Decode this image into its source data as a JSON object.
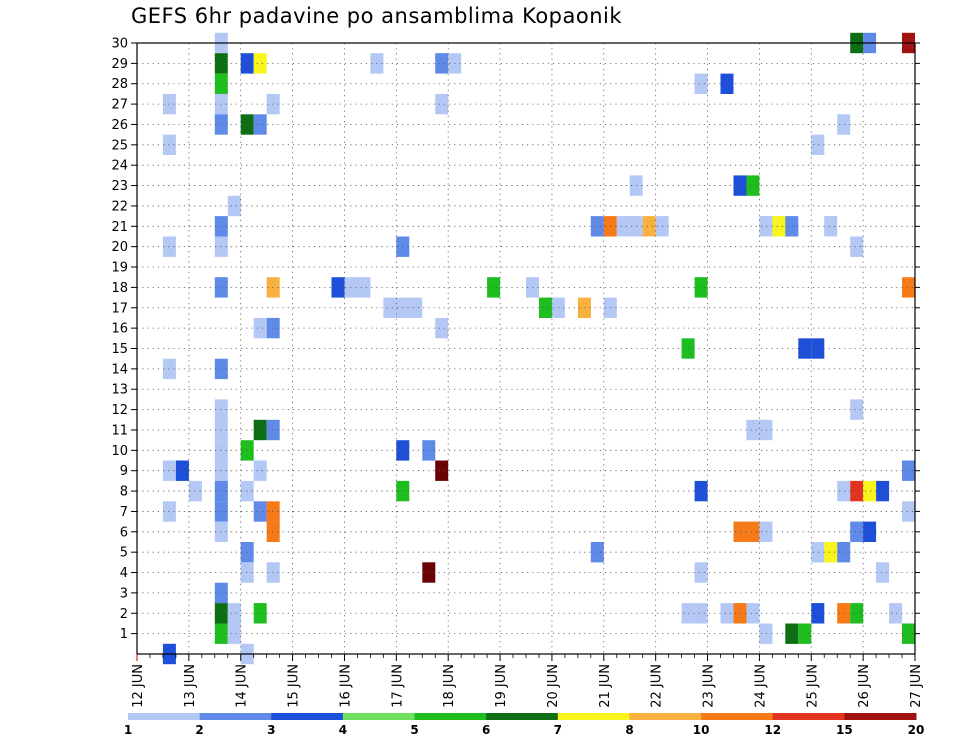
{
  "chart_data": {
    "type": "heatmap",
    "title": "GEFS 6hr padavine po ansamblima Kopaonik",
    "xlabel": "",
    "ylabel": "",
    "x_ticks": [
      "12 JUN",
      "13 JUN",
      "14 JUN",
      "15 JUN",
      "16 JUN",
      "17 JUN",
      "18 JUN",
      "19 JUN",
      "20 JUN",
      "21 JUN",
      "22 JUN",
      "23 JUN",
      "24 JUN",
      "25 JUN",
      "26 JUN",
      "27 JUN"
    ],
    "y_ticks": [
      "1",
      "2",
      "3",
      "4",
      "5",
      "6",
      "7",
      "8",
      "9",
      "10",
      "11",
      "12",
      "13",
      "14",
      "15",
      "16",
      "17",
      "18",
      "19",
      "20",
      "21",
      "22",
      "23",
      "24",
      "25",
      "26",
      "27",
      "28",
      "29",
      "30"
    ],
    "x_unit": "days since 12 JUN 00Z (6-hourly steps)",
    "xlim": [
      0,
      15
    ],
    "ylim": [
      0,
      30
    ],
    "grid": true,
    "colorbar": {
      "labels": [
        "1",
        "2",
        "3",
        "4",
        "5",
        "6",
        "7",
        "8",
        "10",
        "12",
        "15",
        "20"
      ],
      "colors": [
        "#b4c8f5",
        "#5f8ae8",
        "#1e4fd8",
        "#6fe060",
        "#1fbe1f",
        "#0e6e14",
        "#f8f41c",
        "#f8b040",
        "#f77a18",
        "#e23220",
        "#a01210",
        "#6a0404"
      ]
    },
    "cells": [
      {
        "x": 0.5,
        "y": 9,
        "v": 1
      },
      {
        "x": 0.5,
        "y": 0,
        "v": 3
      },
      {
        "x": 0.5,
        "y": 7,
        "v": 1
      },
      {
        "x": 0.5,
        "y": 14,
        "v": 1
      },
      {
        "x": 0.5,
        "y": 20,
        "v": 1
      },
      {
        "x": 0.5,
        "y": 25,
        "v": 1
      },
      {
        "x": 0.5,
        "y": 27,
        "v": 1
      },
      {
        "x": 0.75,
        "y": 9,
        "v": 3
      },
      {
        "x": 1,
        "y": 8,
        "v": 1
      },
      {
        "x": 1.5,
        "y": 30,
        "v": 1
      },
      {
        "x": 1.5,
        "y": 29,
        "v": 6
      },
      {
        "x": 1.5,
        "y": 28,
        "v": 5
      },
      {
        "x": 1.5,
        "y": 27,
        "v": 1
      },
      {
        "x": 1.5,
        "y": 26,
        "v": 2
      },
      {
        "x": 1.5,
        "y": 21,
        "v": 2
      },
      {
        "x": 1.5,
        "y": 20,
        "v": 1
      },
      {
        "x": 1.5,
        "y": 18,
        "v": 2
      },
      {
        "x": 1.5,
        "y": 14,
        "v": 2
      },
      {
        "x": 1.5,
        "y": 12,
        "v": 1
      },
      {
        "x": 1.5,
        "y": 11,
        "v": 1
      },
      {
        "x": 1.5,
        "y": 10,
        "v": 1
      },
      {
        "x": 1.5,
        "y": 9,
        "v": 1
      },
      {
        "x": 1.5,
        "y": 8,
        "v": 2
      },
      {
        "x": 1.5,
        "y": 7,
        "v": 2
      },
      {
        "x": 1.5,
        "y": 6,
        "v": 1
      },
      {
        "x": 1.5,
        "y": 3,
        "v": 2
      },
      {
        "x": 1.5,
        "y": 2,
        "v": 6
      },
      {
        "x": 1.5,
        "y": 1,
        "v": 5
      },
      {
        "x": 1.75,
        "y": 22,
        "v": 1
      },
      {
        "x": 1.75,
        "y": 2,
        "v": 1
      },
      {
        "x": 1.75,
        "y": 1,
        "v": 1
      },
      {
        "x": 2,
        "y": 29,
        "v": 3
      },
      {
        "x": 2,
        "y": 26,
        "v": 6
      },
      {
        "x": 2,
        "y": 10,
        "v": 5
      },
      {
        "x": 2,
        "y": 8,
        "v": 1
      },
      {
        "x": 2,
        "y": 5,
        "v": 2
      },
      {
        "x": 2,
        "y": 4,
        "v": 1
      },
      {
        "x": 2,
        "y": 0,
        "v": 1
      },
      {
        "x": 2.25,
        "y": 29,
        "v": 7
      },
      {
        "x": 2.25,
        "y": 26,
        "v": 2
      },
      {
        "x": 2.25,
        "y": 11,
        "v": 6
      },
      {
        "x": 2.25,
        "y": 9,
        "v": 1
      },
      {
        "x": 2.25,
        "y": 7,
        "v": 2
      },
      {
        "x": 2.25,
        "y": 2,
        "v": 5
      },
      {
        "x": 2.25,
        "y": 16,
        "v": 1
      },
      {
        "x": 2.5,
        "y": 27,
        "v": 1
      },
      {
        "x": 2.5,
        "y": 18,
        "v": 8
      },
      {
        "x": 2.5,
        "y": 16,
        "v": 2
      },
      {
        "x": 2.5,
        "y": 11,
        "v": 2
      },
      {
        "x": 2.5,
        "y": 7,
        "v": 10
      },
      {
        "x": 2.5,
        "y": 6,
        "v": 10
      },
      {
        "x": 2.5,
        "y": 4,
        "v": 1
      },
      {
        "x": 3.75,
        "y": 18,
        "v": 3
      },
      {
        "x": 4,
        "y": 18,
        "v": 1
      },
      {
        "x": 4.25,
        "y": 18,
        "v": 1
      },
      {
        "x": 4.5,
        "y": 29,
        "v": 1
      },
      {
        "x": 4.75,
        "y": 17,
        "v": 1
      },
      {
        "x": 5,
        "y": 17,
        "v": 1
      },
      {
        "x": 5.25,
        "y": 17,
        "v": 1
      },
      {
        "x": 5,
        "y": 20,
        "v": 2
      },
      {
        "x": 5,
        "y": 10,
        "v": 3
      },
      {
        "x": 5,
        "y": 8,
        "v": 5
      },
      {
        "x": 5.5,
        "y": 10,
        "v": 2
      },
      {
        "x": 5.5,
        "y": 4,
        "v": 20
      },
      {
        "x": 5.75,
        "y": 29,
        "v": 2
      },
      {
        "x": 5.75,
        "y": 27,
        "v": 1
      },
      {
        "x": 5.75,
        "y": 16,
        "v": 1
      },
      {
        "x": 5.75,
        "y": 9,
        "v": 20
      },
      {
        "x": 6,
        "y": 29,
        "v": 1
      },
      {
        "x": 6.75,
        "y": 18,
        "v": 5
      },
      {
        "x": 7.5,
        "y": 18,
        "v": 1
      },
      {
        "x": 7.75,
        "y": 17,
        "v": 5
      },
      {
        "x": 8,
        "y": 17,
        "v": 1
      },
      {
        "x": 8.5,
        "y": 17,
        "v": 8
      },
      {
        "x": 8.75,
        "y": 21,
        "v": 2
      },
      {
        "x": 8.75,
        "y": 5,
        "v": 2
      },
      {
        "x": 9,
        "y": 21,
        "v": 10
      },
      {
        "x": 9,
        "y": 17,
        "v": 1
      },
      {
        "x": 9.25,
        "y": 21,
        "v": 1
      },
      {
        "x": 9.5,
        "y": 21,
        "v": 1
      },
      {
        "x": 9.5,
        "y": 23,
        "v": 1
      },
      {
        "x": 9.75,
        "y": 21,
        "v": 8
      },
      {
        "x": 10,
        "y": 21,
        "v": 1
      },
      {
        "x": 10.5,
        "y": 15,
        "v": 5
      },
      {
        "x": 10.5,
        "y": 2,
        "v": 1
      },
      {
        "x": 10.75,
        "y": 2,
        "v": 1
      },
      {
        "x": 10.75,
        "y": 28,
        "v": 1
      },
      {
        "x": 10.75,
        "y": 18,
        "v": 5
      },
      {
        "x": 10.75,
        "y": 8,
        "v": 3
      },
      {
        "x": 10.75,
        "y": 4,
        "v": 1
      },
      {
        "x": 11.25,
        "y": 28,
        "v": 3
      },
      {
        "x": 11.25,
        "y": 2,
        "v": 1
      },
      {
        "x": 11.5,
        "y": 2,
        "v": 10
      },
      {
        "x": 11.5,
        "y": 23,
        "v": 3
      },
      {
        "x": 11.5,
        "y": 6,
        "v": 10
      },
      {
        "x": 11.75,
        "y": 23,
        "v": 5
      },
      {
        "x": 11.75,
        "y": 6,
        "v": 10
      },
      {
        "x": 11.75,
        "y": 11,
        "v": 1
      },
      {
        "x": 12,
        "y": 21,
        "v": 1
      },
      {
        "x": 12,
        "y": 11,
        "v": 1
      },
      {
        "x": 12,
        "y": 6,
        "v": 1
      },
      {
        "x": 12,
        "y": 1,
        "v": 1
      },
      {
        "x": 11.75,
        "y": 2,
        "v": 1
      },
      {
        "x": 12.25,
        "y": 21,
        "v": 7
      },
      {
        "x": 12.5,
        "y": 21,
        "v": 2
      },
      {
        "x": 12.5,
        "y": 1,
        "v": 6
      },
      {
        "x": 12.75,
        "y": 1,
        "v": 5
      },
      {
        "x": 12.75,
        "y": 15,
        "v": 3
      },
      {
        "x": 13,
        "y": 15,
        "v": 3
      },
      {
        "x": 13,
        "y": 25,
        "v": 1
      },
      {
        "x": 13,
        "y": 5,
        "v": 1
      },
      {
        "x": 13,
        "y": 2,
        "v": 3
      },
      {
        "x": 13.25,
        "y": 21,
        "v": 1
      },
      {
        "x": 13.25,
        "y": 5,
        "v": 7
      },
      {
        "x": 13.5,
        "y": 5,
        "v": 2
      },
      {
        "x": 13.5,
        "y": 26,
        "v": 1
      },
      {
        "x": 13.5,
        "y": 8,
        "v": 1
      },
      {
        "x": 13.5,
        "y": 2,
        "v": 10
      },
      {
        "x": 13.75,
        "y": 30,
        "v": 6
      },
      {
        "x": 13.75,
        "y": 20,
        "v": 1
      },
      {
        "x": 13.75,
        "y": 12,
        "v": 1
      },
      {
        "x": 13.75,
        "y": 8,
        "v": 12
      },
      {
        "x": 13.75,
        "y": 6,
        "v": 2
      },
      {
        "x": 13.75,
        "y": 2,
        "v": 5
      },
      {
        "x": 14,
        "y": 30,
        "v": 2
      },
      {
        "x": 14,
        "y": 8,
        "v": 7
      },
      {
        "x": 14,
        "y": 6,
        "v": 3
      },
      {
        "x": 14.25,
        "y": 8,
        "v": 3
      },
      {
        "x": 14.25,
        "y": 4,
        "v": 1
      },
      {
        "x": 14.5,
        "y": 2,
        "v": 1
      },
      {
        "x": 14.75,
        "y": 30,
        "v": 15
      },
      {
        "x": 14.75,
        "y": 18,
        "v": 10
      },
      {
        "x": 14.75,
        "y": 9,
        "v": 2
      },
      {
        "x": 14.75,
        "y": 7,
        "v": 1
      },
      {
        "x": 14.75,
        "y": 1,
        "v": 5
      }
    ]
  }
}
